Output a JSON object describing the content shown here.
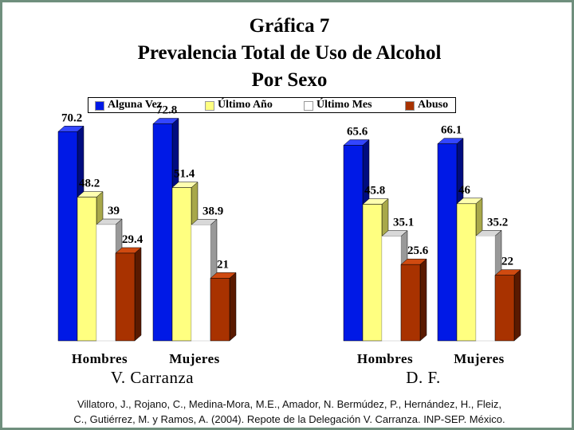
{
  "title_lines": [
    "Gráfica 7",
    "Prevalencia Total de Uso de Alcohol",
    "Por Sexo"
  ],
  "colors": {
    "alguna_vez": "#0019e6",
    "ultimo_ano": "#ffff80",
    "ultimo_mes": "#ffffff",
    "abuso": "#a83200"
  },
  "chart_data": {
    "type": "bar",
    "title": "Gráfica 7 Prevalencia Total de Uso de Alcohol Por Sexo",
    "ylim": [
      0,
      80
    ],
    "legend_position": "top",
    "series": [
      {
        "name": "Alguna Vez",
        "color": "#0019e6",
        "values": [
          70.2,
          72.8,
          65.6,
          66.1
        ]
      },
      {
        "name": "Último Año",
        "color": "#ffff80",
        "values": [
          48.2,
          51.4,
          45.8,
          46
        ]
      },
      {
        "name": "Último Mes",
        "color": "#ffffff",
        "values": [
          39,
          38.9,
          35.1,
          35.2
        ]
      },
      {
        "name": "Abuso",
        "color": "#a83200",
        "values": [
          29.4,
          21,
          25.6,
          22
        ]
      }
    ],
    "groups": [
      {
        "label": "V. Carranza",
        "categories": [
          "Hombres",
          "Mujeres"
        ]
      },
      {
        "label": "D. F.",
        "categories": [
          "Hombres",
          "Mujeres"
        ]
      }
    ],
    "value_labels": [
      [
        "70.2",
        "48.2",
        "39",
        "29.4"
      ],
      [
        "72.8",
        "51.4",
        "38.9",
        "21"
      ],
      [
        "65.6",
        "45.8",
        "35.1",
        "25.6"
      ],
      [
        "66.1",
        "46",
        "35.2",
        "22"
      ]
    ]
  },
  "source_lines": [
    "Villatoro, J., Rojano, C., Medina-Mora, M.E., Amador, N. Bermúdez, P., Hernández, H., Fleiz,",
    "C., Gutiérrez, M. y Ramos, A. (2004). Repote de la Delegación V. Carranza. INP-SEP. México."
  ]
}
